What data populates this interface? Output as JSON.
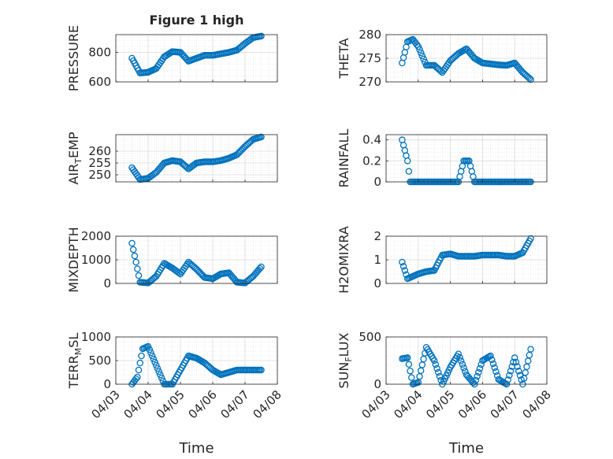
{
  "figure_title": "Figure 1 high",
  "x_axis_label": "Time",
  "date_ticks": [
    "04/03",
    "04/04",
    "04/05",
    "04/06",
    "04/07",
    "04/08"
  ],
  "chart_data": [
    {
      "type": "scatter",
      "ylabel": "PRESSURE",
      "ylabel_sub": "",
      "ylabel_tail": "",
      "ylim": [
        600,
        920
      ],
      "yticks": [
        600,
        800
      ],
      "x": [
        "04/03 12:00",
        "04/03 18:00",
        "04/04 00:00",
        "04/04 06:00",
        "04/04 12:00",
        "04/04 18:00",
        "04/05 00:00",
        "04/05 06:00",
        "04/05 12:00",
        "04/05 18:00",
        "04/06 00:00",
        "04/06 06:00",
        "04/06 12:00",
        "04/06 18:00",
        "04/07 00:00",
        "04/07 06:00",
        "04/07 12:00"
      ],
      "y": [
        760,
        660,
        665,
        690,
        770,
        805,
        800,
        740,
        760,
        780,
        780,
        790,
        800,
        815,
        860,
        900,
        910
      ]
    },
    {
      "type": "scatter",
      "ylabel": "THETA",
      "ylabel_sub": "",
      "ylabel_tail": "",
      "ylim": [
        270,
        280
      ],
      "yticks": [
        270,
        275,
        280
      ],
      "x": [
        "04/03 12:00",
        "04/03 16:00",
        "04/03 20:00",
        "04/04 00:00",
        "04/04 06:00",
        "04/04 12:00",
        "04/04 18:00",
        "04/05 00:00",
        "04/05 06:00",
        "04/05 12:00",
        "04/05 18:00",
        "04/06 00:00",
        "04/06 06:00",
        "04/06 12:00",
        "04/06 18:00",
        "04/07 00:00",
        "04/07 06:00",
        "04/07 12:00"
      ],
      "y": [
        274,
        278.5,
        279,
        277.5,
        273.5,
        273.5,
        272,
        274.5,
        276,
        277,
        275,
        274,
        273.8,
        273.6,
        273.5,
        274,
        272,
        270.5
      ]
    },
    {
      "type": "scatter",
      "ylabel": "AIR",
      "ylabel_sub": "T",
      "ylabel_tail": "EMP",
      "ylim": [
        247,
        267
      ],
      "yticks": [
        250,
        255,
        260
      ],
      "x": [
        "04/03 12:00",
        "04/03 18:00",
        "04/04 00:00",
        "04/04 06:00",
        "04/04 12:00",
        "04/04 18:00",
        "04/05 00:00",
        "04/05 06:00",
        "04/05 12:00",
        "04/05 18:00",
        "04/06 00:00",
        "04/06 06:00",
        "04/06 12:00",
        "04/06 18:00",
        "04/07 00:00",
        "04/07 06:00",
        "04/07 12:00"
      ],
      "y": [
        253,
        248,
        248.5,
        251,
        255,
        256,
        255.5,
        252.5,
        255,
        255.5,
        255.5,
        256,
        257,
        258.5,
        262,
        265,
        266
      ]
    },
    {
      "type": "scatter",
      "ylabel": "RAINFALL",
      "ylabel_sub": "",
      "ylabel_tail": "",
      "ylim": [
        0,
        0.45
      ],
      "yticks": [
        0,
        0.2,
        0.4
      ],
      "x": [
        "04/03 12:00",
        "04/03 14:00",
        "04/03 16:00",
        "04/03 18:00",
        "04/04 06:00",
        "04/04 18:00",
        "04/05 00:00",
        "04/05 06:00",
        "04/05 10:00",
        "04/05 14:00",
        "04/05 18:00",
        "04/06 06:00",
        "04/06 18:00",
        "04/07 06:00",
        "04/07 12:00"
      ],
      "y": [
        0.4,
        0.3,
        0.2,
        0,
        0,
        0,
        0,
        0,
        0.2,
        0.2,
        0,
        0,
        0,
        0,
        0
      ]
    },
    {
      "type": "scatter",
      "ylabel": "MIXDEPTH",
      "ylabel_sub": "",
      "ylabel_tail": "",
      "ylim": [
        0,
        2000
      ],
      "yticks": [
        0,
        1000,
        2000
      ],
      "x": [
        "04/03 12:00",
        "04/03 15:00",
        "04/03 18:00",
        "04/04 00:00",
        "04/04 06:00",
        "04/04 12:00",
        "04/04 18:00",
        "04/05 00:00",
        "04/05 06:00",
        "04/05 12:00",
        "04/05 18:00",
        "04/06 00:00",
        "04/06 06:00",
        "04/06 12:00",
        "04/06 18:00",
        "04/07 00:00",
        "04/07 06:00",
        "04/07 12:00"
      ],
      "y": [
        1700,
        900,
        50,
        20,
        300,
        850,
        650,
        400,
        900,
        600,
        250,
        200,
        400,
        450,
        50,
        20,
        300,
        700
      ]
    },
    {
      "type": "scatter",
      "ylabel": "H2OMIXRA",
      "ylabel_sub": "",
      "ylabel_tail": "",
      "ylim": [
        0,
        2
      ],
      "yticks": [
        0,
        1,
        2
      ],
      "x": [
        "04/03 12:00",
        "04/03 16:00",
        "04/03 20:00",
        "04/04 00:00",
        "04/04 06:00",
        "04/04 12:00",
        "04/04 18:00",
        "04/05 00:00",
        "04/05 06:00",
        "04/05 12:00",
        "04/05 18:00",
        "04/06 00:00",
        "04/06 06:00",
        "04/06 12:00",
        "04/06 18:00",
        "04/07 00:00",
        "04/07 06:00",
        "04/07 12:00"
      ],
      "y": [
        0.9,
        0.2,
        0.3,
        0.4,
        0.5,
        0.55,
        1.2,
        1.25,
        1.15,
        1.15,
        1.15,
        1.2,
        1.2,
        1.2,
        1.15,
        1.15,
        1.3,
        1.9
      ]
    },
    {
      "type": "scatter",
      "ylabel": "TERR",
      "ylabel_sub": "M",
      "ylabel_tail": "SL",
      "ylim": [
        0,
        1000
      ],
      "yticks": [
        0,
        500,
        1000
      ],
      "x": [
        "04/03 12:00",
        "04/03 16:00",
        "04/03 20:00",
        "04/04 00:00",
        "04/04 06:00",
        "04/04 12:00",
        "04/04 18:00",
        "04/05 00:00",
        "04/05 06:00",
        "04/05 12:00",
        "04/05 18:00",
        "04/06 00:00",
        "04/06 06:00",
        "04/06 12:00",
        "04/06 18:00",
        "04/07 00:00",
        "04/07 06:00",
        "04/07 12:00"
      ],
      "y": [
        0,
        150,
        750,
        800,
        400,
        0,
        0,
        300,
        600,
        550,
        450,
        300,
        200,
        250,
        300,
        300,
        300,
        300
      ]
    },
    {
      "type": "scatter",
      "ylabel": "SUN",
      "ylabel_sub": "F",
      "ylabel_tail": "LUX",
      "ylim": [
        0,
        500
      ],
      "yticks": [
        0,
        500
      ],
      "x": [
        "04/03 12:00",
        "04/03 16:00",
        "04/03 20:00",
        "04/04 00:00",
        "04/04 06:00",
        "04/04 12:00",
        "04/04 18:00",
        "04/05 00:00",
        "04/05 06:00",
        "04/05 12:00",
        "04/05 18:00",
        "04/06 00:00",
        "04/06 06:00",
        "04/06 12:00",
        "04/06 18:00",
        "04/07 00:00",
        "04/07 06:00",
        "04/07 12:00"
      ],
      "y": [
        270,
        280,
        0,
        20,
        390,
        250,
        0,
        180,
        320,
        100,
        0,
        250,
        300,
        50,
        0,
        280,
        0,
        370
      ]
    }
  ]
}
